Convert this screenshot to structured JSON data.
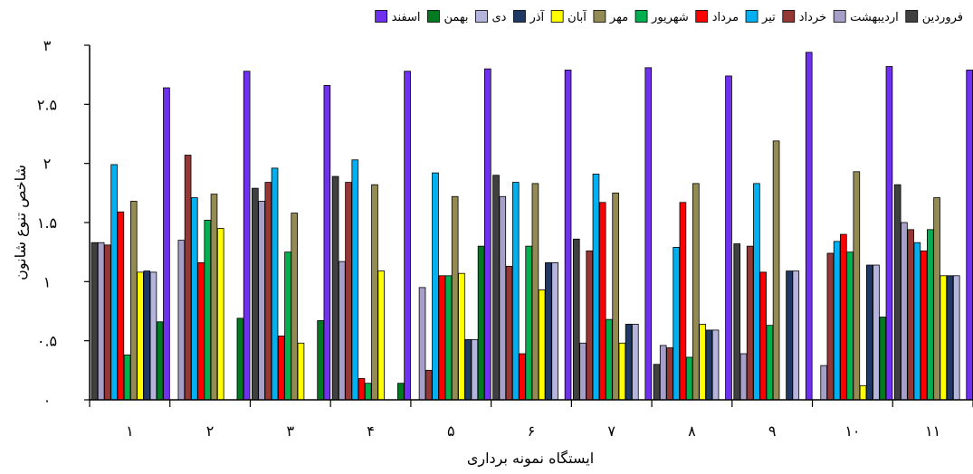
{
  "chart_data": {
    "type": "bar",
    "xlabel": "ایستگاه نمونه برداری",
    "ylabel": "شاخص تنوع شانون",
    "ylim": [
      0,
      3
    ],
    "yticks": [
      0,
      0.5,
      1,
      1.5,
      2,
      2.5,
      3
    ],
    "ytick_labels": [
      "۰",
      "۰.۵",
      "۱",
      "۱.۵",
      "۲",
      "۲.۵",
      "۳"
    ],
    "grid": false,
    "legend_position": "top",
    "categories": [
      "۱",
      "۲",
      "۳",
      "۴",
      "۵",
      "۶",
      "۷",
      "۸",
      "۹",
      "۱۰",
      "۱۱"
    ],
    "series": [
      {
        "name": "فروردین",
        "color": "#404040",
        "values": [
          1.33,
          0,
          1.79,
          1.89,
          0,
          1.9,
          1.36,
          0.3,
          1.32,
          0,
          1.82
        ]
      },
      {
        "name": "اردیبهشت",
        "color": "#a6a0c8",
        "values": [
          1.33,
          1.35,
          1.68,
          1.17,
          0.95,
          1.72,
          0.48,
          0.46,
          0.39,
          0.29,
          1.5
        ]
      },
      {
        "name": "خرداد",
        "color": "#953735",
        "values": [
          1.31,
          2.07,
          1.84,
          1.84,
          0.25,
          1.13,
          1.26,
          0.44,
          1.3,
          1.24,
          1.44
        ]
      },
      {
        "name": "تیر",
        "color": "#00b0f0",
        "values": [
          1.99,
          1.71,
          1.96,
          2.03,
          1.92,
          1.84,
          1.91,
          1.29,
          1.83,
          1.34,
          1.33
        ]
      },
      {
        "name": "مرداد",
        "color": "#ff0000",
        "values": [
          1.59,
          1.16,
          0.54,
          0.18,
          1.05,
          0.39,
          1.67,
          1.67,
          1.08,
          1.4,
          1.26
        ]
      },
      {
        "name": "شهریور",
        "color": "#00b050",
        "values": [
          0.38,
          1.52,
          1.25,
          0.14,
          1.05,
          1.3,
          0.68,
          0.36,
          0.63,
          1.25,
          1.44
        ]
      },
      {
        "name": "مهر",
        "color": "#948a54",
        "values": [
          1.68,
          1.74,
          1.58,
          1.82,
          1.72,
          1.83,
          1.75,
          1.83,
          2.19,
          1.93,
          1.71
        ]
      },
      {
        "name": "آبان",
        "color": "#ffff00",
        "values": [
          1.08,
          1.45,
          0.48,
          1.09,
          1.07,
          0.93,
          0.48,
          0.64,
          0,
          0.12,
          1.05
        ]
      },
      {
        "name": "آذر",
        "color": "#1f3864",
        "values": [
          1.09,
          0,
          0,
          0,
          0.51,
          1.16,
          0.64,
          0.59,
          1.09,
          1.14,
          1.05
        ]
      },
      {
        "name": "دی",
        "color": "#b4b4dc",
        "values": [
          1.08,
          0,
          0,
          0,
          0.51,
          1.16,
          0.64,
          0.59,
          1.09,
          1.14,
          1.05
        ]
      },
      {
        "name": "بهمن",
        "color": "#007a20",
        "values": [
          0.66,
          0.69,
          0.67,
          0.14,
          1.3,
          0,
          0,
          0,
          0,
          0.7,
          0
        ]
      },
      {
        "name": "اسفند",
        "color": "#7030f0",
        "values": [
          2.64,
          2.78,
          2.66,
          2.78,
          2.8,
          2.79,
          2.81,
          2.74,
          2.94,
          2.82,
          2.79
        ]
      }
    ]
  }
}
